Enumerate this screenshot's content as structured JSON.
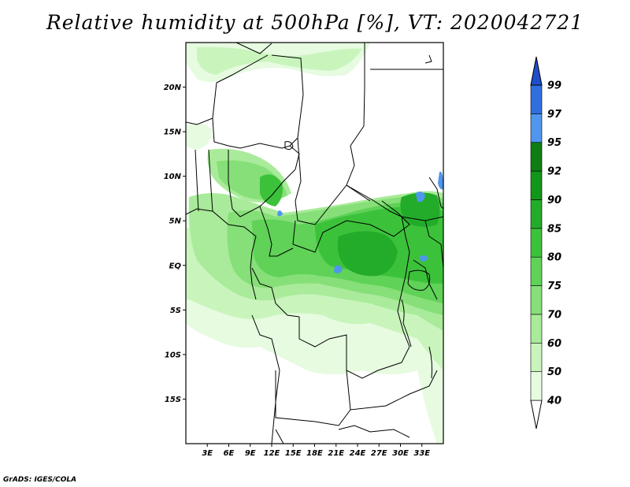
{
  "title": "Relative humidity at 500hPa [%], VT: 2020042721",
  "credit": "GrADS: IGES/COLA",
  "map": {
    "lon_range": [
      0,
      36
    ],
    "lat_range": [
      -20,
      25
    ],
    "lon_ticks": [
      {
        "value": 3,
        "label": "3E"
      },
      {
        "value": 6,
        "label": "6E"
      },
      {
        "value": 9,
        "label": "9E"
      },
      {
        "value": 12,
        "label": "12E"
      },
      {
        "value": 15,
        "label": "15E"
      },
      {
        "value": 18,
        "label": "18E"
      },
      {
        "value": 21,
        "label": "21E"
      },
      {
        "value": 24,
        "label": "24E"
      },
      {
        "value": 27,
        "label": "27E"
      },
      {
        "value": 30,
        "label": "30E"
      },
      {
        "value": 33,
        "label": "33E"
      }
    ],
    "lat_ticks": [
      {
        "value": 20,
        "label": "20N"
      },
      {
        "value": 15,
        "label": "15N"
      },
      {
        "value": 10,
        "label": "10N"
      },
      {
        "value": 5,
        "label": "5N"
      },
      {
        "value": 0,
        "label": "EQ"
      },
      {
        "value": -5,
        "label": "5S"
      },
      {
        "value": -10,
        "label": "10S"
      },
      {
        "value": -15,
        "label": "15S"
      }
    ]
  },
  "colorbar": {
    "levels": [
      "40",
      "50",
      "60",
      "70",
      "75",
      "80",
      "85",
      "90",
      "92",
      "95",
      "97",
      "99"
    ],
    "colors": [
      "#ffffff",
      "#e6fbe0",
      "#c9f5bd",
      "#a9eb9a",
      "#86df78",
      "#5fd257",
      "#3cc23a",
      "#23ac2a",
      "#129619",
      "#0d7f12",
      "#4f96ef",
      "#2f6fe0",
      "#1f4fc8"
    ]
  },
  "colors": {
    "rh_40_50": "#e6fbe0",
    "rh_50_60": "#c9f5bd",
    "rh_60_70": "#a9eb9a",
    "rh_70_75": "#86df78",
    "rh_75_80": "#5fd257",
    "rh_80_85": "#3cc23a",
    "rh_85_90": "#23ac2a",
    "rh_95_97": "#4f96ef"
  }
}
